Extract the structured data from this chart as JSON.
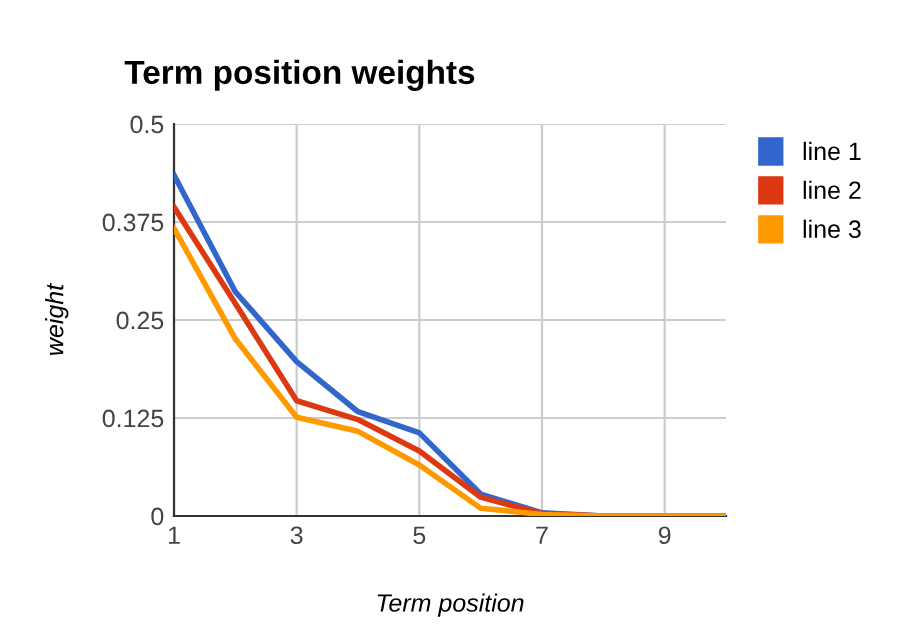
{
  "chart_data": {
    "type": "line",
    "title": "Term position weights",
    "xlabel": "Term position",
    "ylabel": "weight",
    "x": [
      1,
      2,
      3,
      4,
      5,
      6,
      7,
      8,
      9,
      10
    ],
    "series": [
      {
        "name": "line 1",
        "color": "#3366cc",
        "values": [
          0.435,
          0.286,
          0.197,
          0.133,
          0.106,
          0.028,
          0.004,
          0,
          0,
          0
        ]
      },
      {
        "name": "line 2",
        "color": "#dc3912",
        "values": [
          0.394,
          0.271,
          0.147,
          0.123,
          0.083,
          0.024,
          0.003,
          0,
          0,
          0
        ]
      },
      {
        "name": "line 3",
        "color": "#ff9900",
        "values": [
          0.367,
          0.226,
          0.126,
          0.108,
          0.065,
          0.01,
          0.002,
          0,
          0,
          0
        ]
      }
    ],
    "xlim": [
      1,
      10
    ],
    "xticks": [
      1,
      3,
      5,
      7,
      9
    ],
    "ylim": [
      0,
      0.5
    ],
    "yticks": [
      0,
      0.125,
      0.25,
      0.375,
      0.5
    ],
    "grid": true,
    "legend": "right",
    "marker": "none",
    "line_style": "solid"
  }
}
